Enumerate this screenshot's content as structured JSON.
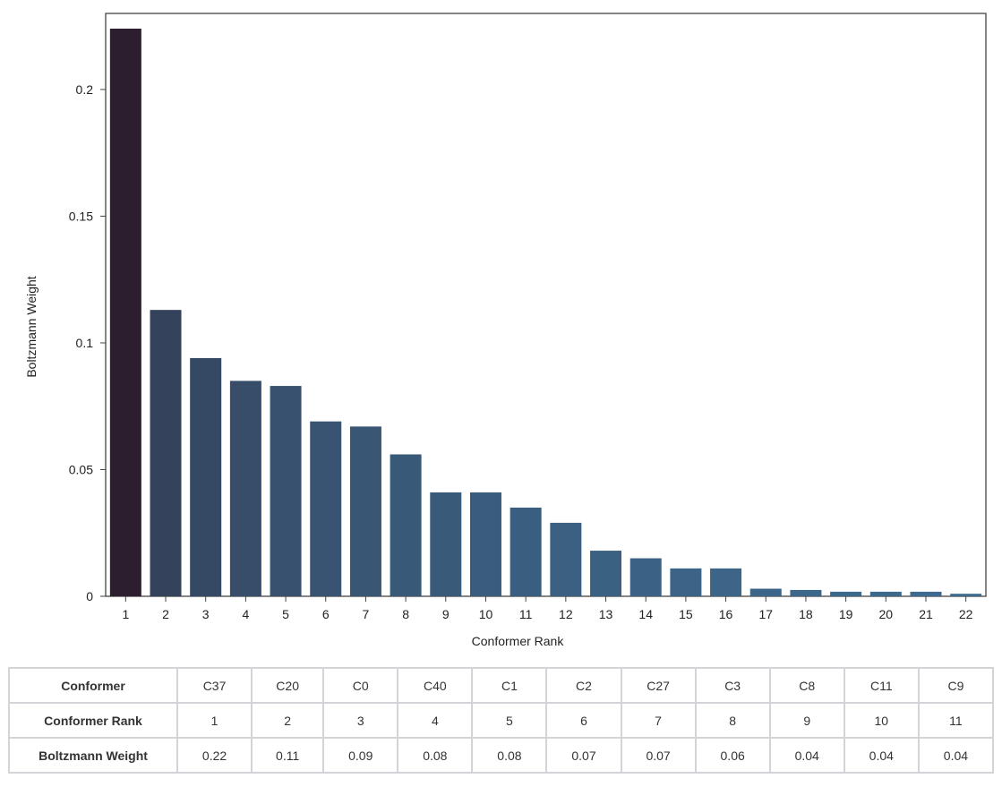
{
  "chart_data": {
    "type": "bar",
    "xlabel": "Conformer Rank",
    "ylabel": "Boltzmann Weight",
    "categories": [
      "1",
      "2",
      "3",
      "4",
      "5",
      "6",
      "7",
      "8",
      "9",
      "10",
      "11",
      "12",
      "13",
      "14",
      "15",
      "16",
      "17",
      "18",
      "19",
      "20",
      "21",
      "22"
    ],
    "values": [
      0.224,
      0.113,
      0.094,
      0.085,
      0.083,
      0.069,
      0.067,
      0.056,
      0.041,
      0.041,
      0.035,
      0.029,
      0.018,
      0.015,
      0.011,
      0.011,
      0.003,
      0.0025,
      0.0018,
      0.0018,
      0.0018,
      0.001
    ],
    "ylim": [
      0,
      0.23
    ],
    "yticks": [
      "0",
      "0.05",
      "0.1",
      "0.15",
      "0.2"
    ],
    "ytick_values": [
      0,
      0.05,
      0.1,
      0.15,
      0.2
    ],
    "grid": false,
    "color_start": "#2d1e2f",
    "color_end": "#3d6b8f"
  },
  "table": {
    "rows": [
      {
        "header": "Conformer",
        "cells": [
          "C37",
          "C20",
          "C0",
          "C40",
          "C1",
          "C2",
          "C27",
          "C3",
          "C8",
          "C11",
          "C9"
        ]
      },
      {
        "header": "Conformer Rank",
        "cells": [
          "1",
          "2",
          "3",
          "4",
          "5",
          "6",
          "7",
          "8",
          "9",
          "10",
          "11"
        ]
      },
      {
        "header": "Boltzmann Weight",
        "cells": [
          "0.22",
          "0.11",
          "0.09",
          "0.08",
          "0.08",
          "0.07",
          "0.07",
          "0.06",
          "0.04",
          "0.04",
          "0.04"
        ]
      }
    ]
  }
}
